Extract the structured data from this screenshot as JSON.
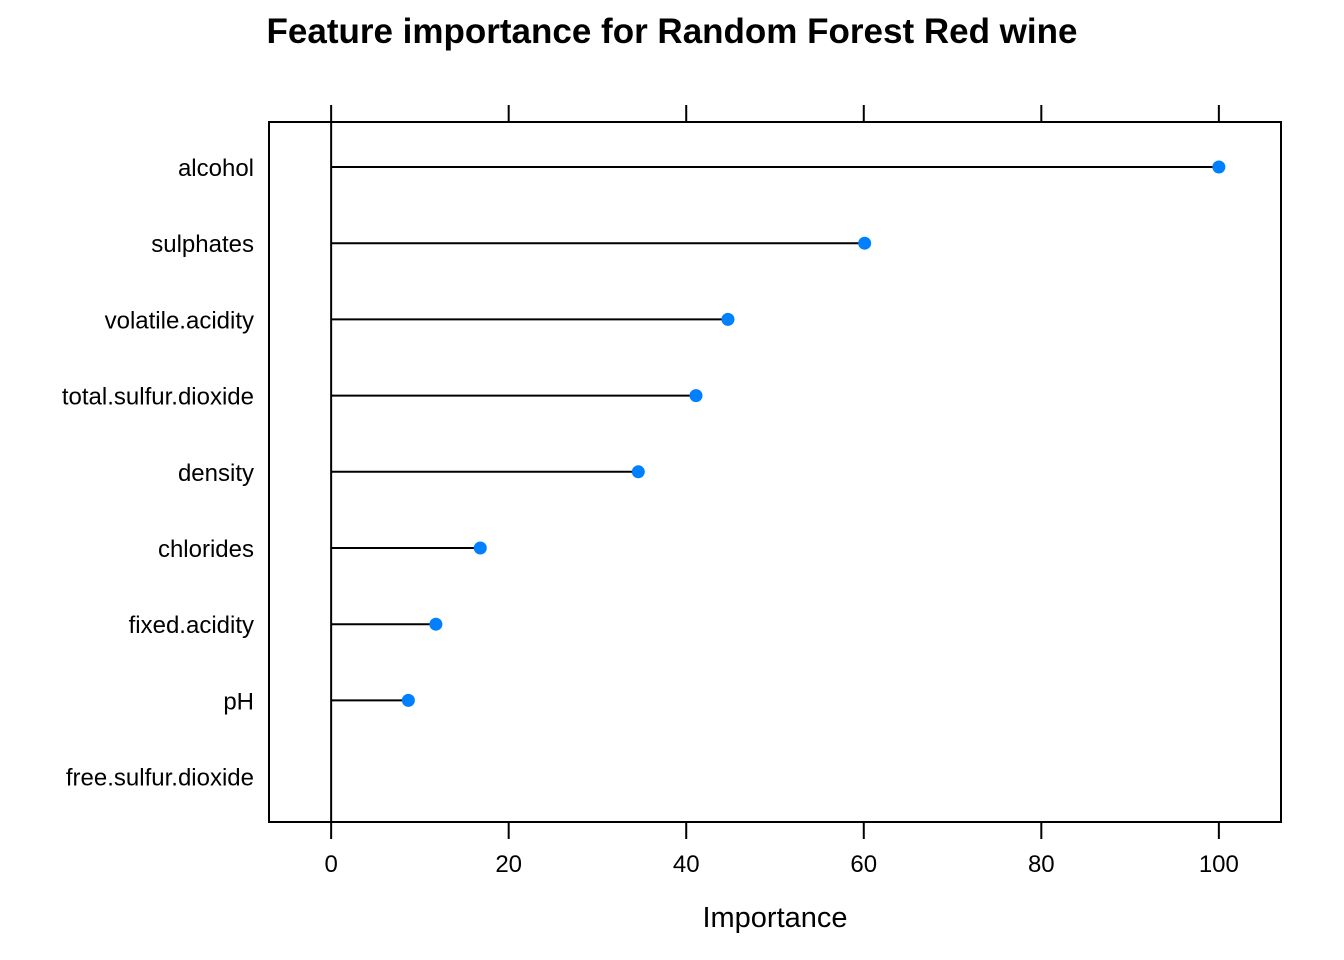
{
  "chart_data": {
    "type": "dotplot",
    "title": "Feature importance for Random Forest Red wine",
    "xlabel": "Importance",
    "ylabel": "",
    "xlim": [
      -7,
      107
    ],
    "xticks": [
      0,
      20,
      40,
      60,
      80,
      100
    ],
    "categories": [
      "alcohol",
      "sulphates",
      "volatile.acidity",
      "total.sulfur.dioxide",
      "density",
      "chlorides",
      "fixed.acidity",
      "pH",
      "free.sulfur.dioxide"
    ],
    "values": [
      100,
      60.1,
      44.7,
      41.1,
      34.6,
      16.8,
      11.8,
      8.7,
      0
    ],
    "grid": false,
    "legend": "none",
    "colors": {
      "point": "#0080ff",
      "line": "#000000",
      "frame": "#000000"
    }
  }
}
